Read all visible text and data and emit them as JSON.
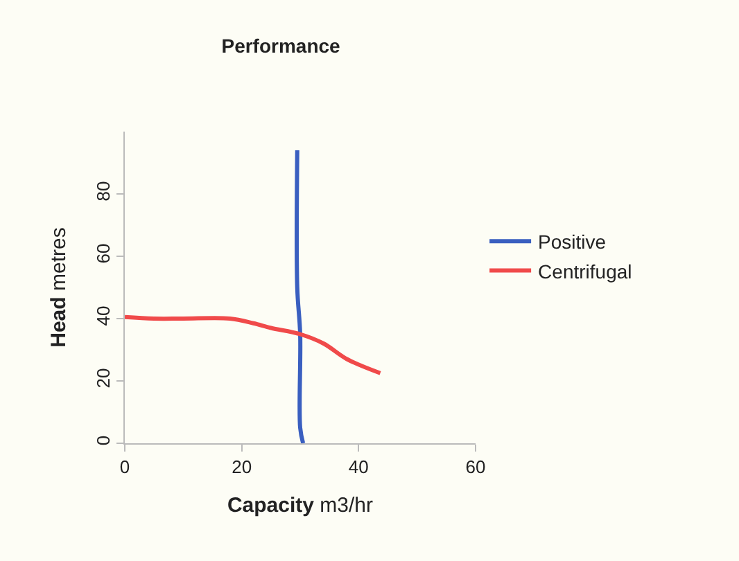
{
  "chart_data": {
    "type": "line",
    "title": "Performance",
    "xlabel": "Capacity m3/hr",
    "ylabel": "Head metres",
    "xlim": [
      0,
      60
    ],
    "xticks": [
      0,
      20,
      40,
      60
    ],
    "ylim": [
      0,
      100
    ],
    "yticks": [
      0,
      20,
      40,
      60,
      80
    ],
    "grid": false,
    "legend": "right",
    "marker": "none",
    "line_style": "solid",
    "series": [
      {
        "name": "Positive",
        "color": "#3a5fc0",
        "x": [
          29.5,
          29.5,
          30,
          30,
          30.5
        ],
        "values": [
          94,
          50,
          35,
          5,
          0
        ]
      },
      {
        "name": "Centrifugal",
        "color": "#f04a4a",
        "x": [
          0,
          5,
          10,
          18,
          22,
          25,
          30,
          34,
          38,
          43.7
        ],
        "values": [
          40.5,
          40,
          40,
          40,
          38.5,
          37,
          35,
          32,
          27,
          22.5
        ]
      }
    ]
  }
}
